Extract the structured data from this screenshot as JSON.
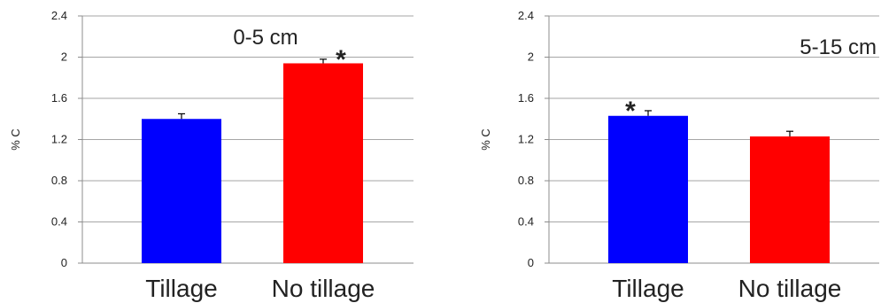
{
  "chart_data": [
    {
      "type": "bar",
      "annotation": "0-5 cm",
      "ylabel": "% C",
      "ylim": [
        0,
        2.4
      ],
      "yticks": [
        "0",
        "0.4",
        "0.8",
        "1.2",
        "1.6",
        "2",
        "2.4"
      ],
      "grid": true,
      "categories": [
        "Tillage",
        "No tillage"
      ],
      "values": [
        1.4,
        1.94
      ],
      "errors": [
        0.05,
        0.04
      ],
      "significance": [
        "",
        "*"
      ],
      "colors": [
        "#0000ff",
        "#ff0000"
      ]
    },
    {
      "type": "bar",
      "annotation": "5-15 cm",
      "ylabel": "% C",
      "ylim": [
        0,
        2.4
      ],
      "yticks": [
        "0",
        "0.4",
        "0.8",
        "1.2",
        "1.6",
        "2",
        "2.4"
      ],
      "grid": true,
      "categories": [
        "Tillage",
        "No tillage"
      ],
      "values": [
        1.43,
        1.23
      ],
      "errors": [
        0.05,
        0.05
      ],
      "significance": [
        "*",
        ""
      ],
      "colors": [
        "#0000ff",
        "#ff0000"
      ]
    }
  ]
}
